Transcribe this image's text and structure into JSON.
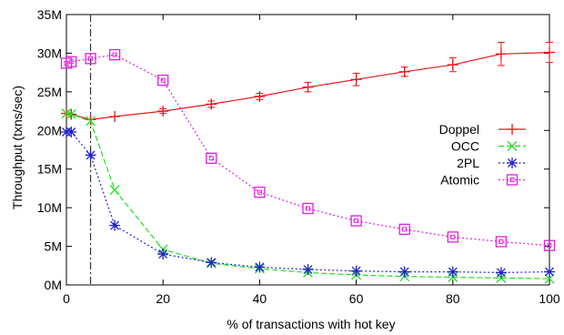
{
  "chart_data": {
    "type": "line",
    "title": "",
    "xlabel": "% of transactions with hot key",
    "ylabel": "Throughput (txns/sec)",
    "xlim": [
      0,
      100
    ],
    "ylim": [
      0,
      35
    ],
    "x_ticks": [
      0,
      20,
      40,
      60,
      80,
      100
    ],
    "y_ticks": [
      {
        "value": 0,
        "label": "0M"
      },
      {
        "value": 5,
        "label": "5M"
      },
      {
        "value": 10,
        "label": "10M"
      },
      {
        "value": 15,
        "label": "15M"
      },
      {
        "value": 20,
        "label": "20M"
      },
      {
        "value": 25,
        "label": "25M"
      },
      {
        "value": 30,
        "label": "30M"
      },
      {
        "value": 35,
        "label": "35M"
      }
    ],
    "grid": false,
    "legend_position": "right",
    "reference_line": {
      "x": 5,
      "style": "dash-dot"
    },
    "series": [
      {
        "name": "Doppel",
        "color": "#e41a1c",
        "marker": "plus",
        "line_style": "solid",
        "x": [
          0,
          1,
          5,
          10,
          20,
          30,
          40,
          50,
          60,
          70,
          80,
          90,
          100
        ],
        "y": [
          22.2,
          22.1,
          21.4,
          21.8,
          22.5,
          23.4,
          24.4,
          25.6,
          26.6,
          27.6,
          28.5,
          29.9,
          30.1
        ],
        "error": [
          0,
          0,
          0,
          0,
          0.3,
          0.4,
          0.4,
          0.6,
          0.8,
          0.6,
          0.9,
          1.5,
          1.3
        ]
      },
      {
        "name": "OCC",
        "color": "#22dd22",
        "marker": "x",
        "line_style": "dashed",
        "x": [
          0,
          1,
          5,
          10,
          20,
          30,
          40,
          50,
          60,
          70,
          80,
          90,
          100
        ],
        "y": [
          22.2,
          22.1,
          21.2,
          12.3,
          4.6,
          2.8,
          2.1,
          1.6,
          1.3,
          1.1,
          1.0,
          0.9,
          0.8
        ]
      },
      {
        "name": "2PL",
        "color": "#2222cc",
        "marker": "star",
        "line_style": "dotted",
        "x": [
          0,
          1,
          5,
          10,
          20,
          30,
          40,
          50,
          60,
          70,
          80,
          90,
          100
        ],
        "y": [
          19.8,
          19.8,
          16.8,
          7.7,
          4.0,
          2.9,
          2.3,
          2.0,
          1.8,
          1.7,
          1.7,
          1.6,
          1.7
        ]
      },
      {
        "name": "Atomic",
        "color": "#dd22dd",
        "marker": "square",
        "line_style": "dotted",
        "x": [
          0,
          1,
          5,
          10,
          20,
          30,
          40,
          50,
          60,
          70,
          80,
          90,
          100
        ],
        "y": [
          28.7,
          28.9,
          29.3,
          29.8,
          26.5,
          16.4,
          12.0,
          9.9,
          8.3,
          7.2,
          6.2,
          5.6,
          5.1
        ]
      }
    ]
  }
}
